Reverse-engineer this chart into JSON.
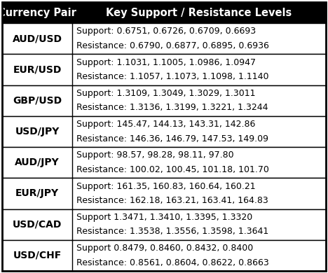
{
  "col1_header": "Currency Pair",
  "col2_header": "Key Support / Resistance Levels",
  "rows": [
    {
      "pair": "AUD/USD",
      "line1": "Support: 0.6751, 0.6726, 0.6709, 0.6693",
      "line2": "Resistance: 0.6790, 0.6877, 0.6895, 0.6936"
    },
    {
      "pair": "EUR/USD",
      "line1": "Support: 1.1031, 1.1005, 1.0986, 1.0947",
      "line2": "Resistance: 1.1057, 1.1073, 1.1098, 1.1140"
    },
    {
      "pair": "GBP/USD",
      "line1": "Support: 1.3109, 1.3049, 1.3029, 1.3011",
      "line2": "Resistance: 1.3136, 1.3199, 1.3221, 1.3244"
    },
    {
      "pair": "USD/JPY",
      "line1": "Support: 145.47, 144.13, 143.31, 142.86",
      "line2": "Resistance: 146.36, 146.79, 147.53, 149.09"
    },
    {
      "pair": "AUD/JPY",
      "line1": "Support: 98.57, 98.28, 98.11, 97.80",
      "line2": "Resistance: 100.02, 100.45, 101.18, 101.70"
    },
    {
      "pair": "EUR/JPY",
      "line1": "Support: 161.35, 160.83, 160.64, 160.21",
      "line2": "Resistance: 162.18, 163.21, 163.41, 164.83"
    },
    {
      "pair": "USD/CAD",
      "line1": "Support 1.3471, 1.3410, 1.3395, 1.3320",
      "line2": "Resistance: 1.3538, 1.3556, 1.3598, 1.3641"
    },
    {
      "pair": "USD/CHF",
      "line1": "Support 0.8479, 0.8460, 0.8432, 0.8400",
      "line2": "Resistance: 0.8561, 0.8604, 0.8622, 0.8663"
    }
  ],
  "header_bg": "#000000",
  "header_fg": "#ffffff",
  "row_bg": "#ffffff",
  "border_color": "#000000",
  "text_color": "#000000",
  "header_fontsize": 10.5,
  "cell_fontsize": 9.0,
  "pair_fontsize": 10.0,
  "fig_width": 4.68,
  "fig_height": 3.9,
  "dpi": 100
}
